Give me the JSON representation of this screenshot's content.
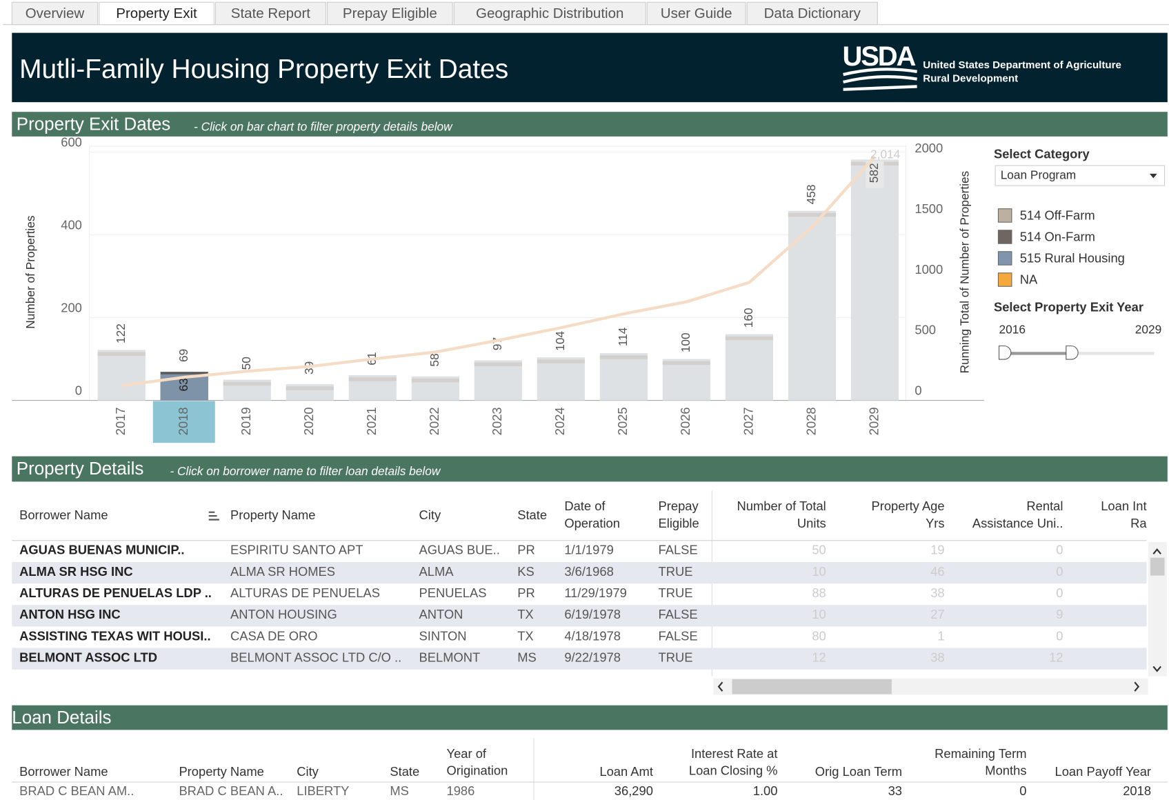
{
  "tabs": [
    "Overview",
    "Property Exit",
    "State Report",
    "Prepay Eligible",
    "Geographic Distribution",
    "User Guide",
    "Data Dictionary"
  ],
  "active_tab": "Property Exit",
  "header": {
    "title": "Mutli-Family Housing Property Exit Dates",
    "agency_abbr": "USDA",
    "agency_line1": "United States Department of Agriculture",
    "agency_line2": "Rural Development"
  },
  "exit_section": {
    "title": "Property Exit Dates",
    "hint": "- Click on bar chart to filter property details below"
  },
  "chart_data": {
    "type": "bar",
    "categories": [
      "2017",
      "2018",
      "2019",
      "2020",
      "2021",
      "2022",
      "2023",
      "2024",
      "2025",
      "2026",
      "2027",
      "2028",
      "2029"
    ],
    "series": [
      {
        "values": [
          122,
          69,
          50,
          39,
          61,
          58,
          97,
          104,
          114,
          100,
          160,
          458,
          582
        ],
        "color": "#dde1e3"
      },
      {
        "type": "line",
        "axis": "y2",
        "color": "#f5dcc6",
        "values": [
          122,
          191,
          241,
          280,
          341,
          399,
          496,
          600,
          714,
          814,
          974,
          1432,
          2014
        ],
        "value_labels": [
          null,
          null,
          null,
          null,
          null,
          null,
          null,
          null,
          null,
          null,
          null,
          null,
          "2,014"
        ]
      }
    ],
    "selected_category": "2018",
    "selected_value": 63,
    "selected_color": "#7f93a8",
    "selected_top_color": "#5c5a58",
    "ylabel": "Number of Properties",
    "y2label": "Running Total of Number of Properties",
    "ylim": [
      0,
      600
    ],
    "yticks": [
      0,
      200,
      400,
      600
    ],
    "y2lim": [
      0,
      2050
    ],
    "y2ticks": [
      0,
      500,
      1000,
      1500,
      2000
    ],
    "grid": true,
    "legend": [
      {
        "name": "514 Off-Farm",
        "color": "#bcb0a0"
      },
      {
        "name": "514 On-Farm",
        "color": "#6e6660"
      },
      {
        "name": "515 Rural Housing",
        "color": "#8095ad"
      },
      {
        "name": "NA",
        "color": "#f5a93c"
      }
    ]
  },
  "filters": {
    "category_label": "Select Category",
    "category_value": "Loan Program",
    "year_label": "Select Property Exit Year",
    "year_min": 2016,
    "year_max": 2029
  },
  "details_section": {
    "title": "Property Details",
    "hint": "- Click on borrower name to filter loan details below"
  },
  "property_table": {
    "columns": [
      [
        "Borrower Name"
      ],
      [
        "Property Name"
      ],
      [
        "City"
      ],
      [
        "State"
      ],
      [
        "Date of",
        "Operation"
      ],
      [
        "Prepay",
        "Eligible"
      ],
      [
        "Number of Total",
        "Units"
      ],
      [
        "Property Age",
        "Yrs"
      ],
      [
        "Rental",
        "Assistance Uni.."
      ],
      [
        "Loan Int",
        "Ra"
      ]
    ],
    "rows": [
      [
        "AGUAS BUENAS MUNICIP..",
        "ESPIRITU SANTO APT",
        "AGUAS BUE..",
        "PR",
        "1/1/1979",
        "FALSE",
        50,
        19,
        0
      ],
      [
        "ALMA SR HSG INC",
        "ALMA SR HOMES",
        "ALMA",
        "KS",
        "3/6/1968",
        "TRUE",
        10,
        46,
        0
      ],
      [
        "ALTURAS DE PENUELAS LDP ..",
        "ALTURAS DE PENUELAS",
        "PENUELAS",
        "PR",
        "11/29/1979",
        "TRUE",
        88,
        38,
        0
      ],
      [
        "ANTON HSG INC",
        "ANTON HOUSING",
        "ANTON",
        "TX",
        "6/19/1978",
        "FALSE",
        10,
        27,
        9
      ],
      [
        "ASSISTING TEXAS WIT HOUSI..",
        "CASA DE ORO",
        "SINTON",
        "TX",
        "4/18/1978",
        "FALSE",
        80,
        1,
        0
      ],
      [
        "BELMONT ASSOC LTD",
        "BELMONT ASSOC LTD C/O ..",
        "BELMONT",
        "MS",
        "9/22/1978",
        "TRUE",
        12,
        38,
        12
      ]
    ]
  },
  "loan_section": {
    "title": "Loan Details"
  },
  "loan_table": {
    "columns": [
      [
        "Borrower Name"
      ],
      [
        "Property Name"
      ],
      [
        "City"
      ],
      [
        "State"
      ],
      [
        "Year of",
        "Origination"
      ],
      [
        "Loan Amt"
      ],
      [
        "Interest Rate at",
        "Loan Closing %"
      ],
      [
        "Orig Loan Term"
      ],
      [
        "Remaining Term",
        "Months"
      ],
      [
        "Loan Payoff Year"
      ]
    ],
    "rows": [
      [
        "BRAD C BEAN AM..",
        "BRAD C BEAN A..",
        "LIBERTY",
        "MS",
        1986,
        "36,290",
        "1.00",
        33,
        0,
        2018
      ]
    ]
  }
}
